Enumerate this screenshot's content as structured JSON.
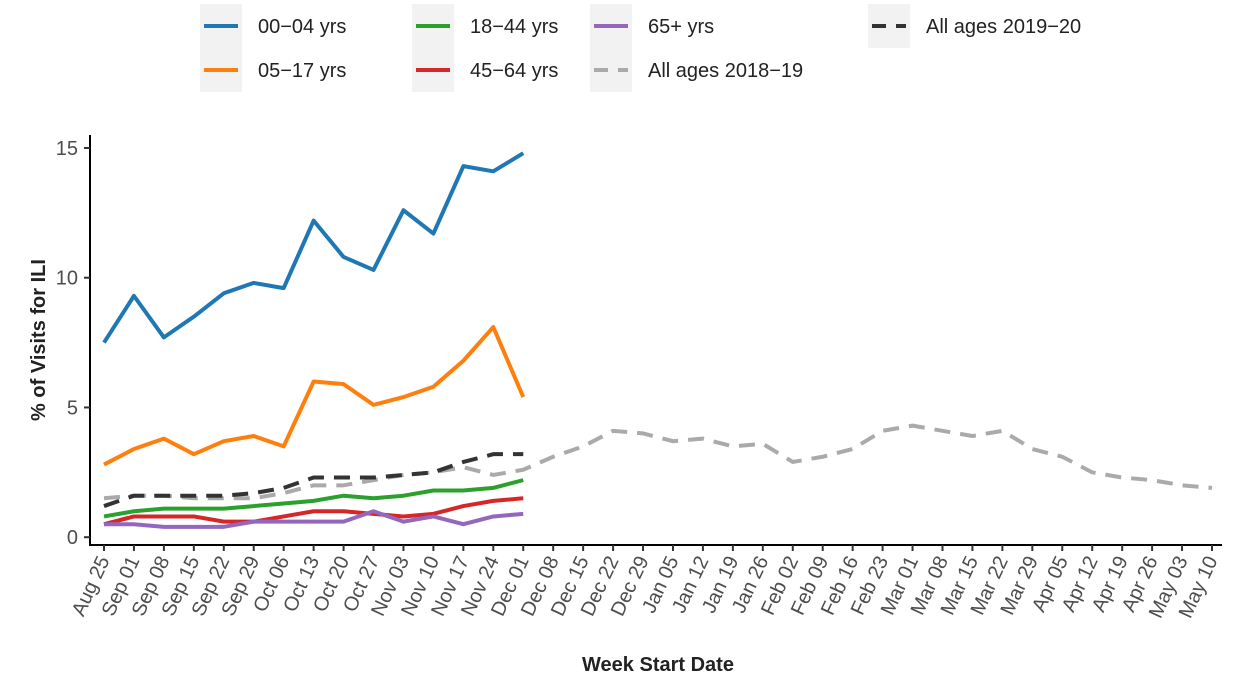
{
  "chart_data": {
    "type": "line",
    "x_label": "Week Start Date",
    "y_label": "% of Visits for ILI",
    "categories": [
      "Aug 25",
      "Sep 01",
      "Sep 08",
      "Sep 15",
      "Sep 22",
      "Sep 29",
      "Oct 06",
      "Oct 13",
      "Oct 20",
      "Oct 27",
      "Nov 03",
      "Nov 10",
      "Nov 17",
      "Nov 24",
      "Dec 01",
      "Dec 08",
      "Dec 15",
      "Dec 22",
      "Dec 29",
      "Jan 05",
      "Jan 12",
      "Jan 19",
      "Jan 26",
      "Feb 02",
      "Feb 09",
      "Feb 16",
      "Feb 23",
      "Mar 01",
      "Mar 08",
      "Mar 15",
      "Mar 22",
      "Mar 29",
      "Apr 05",
      "Apr 12",
      "Apr 19",
      "Apr 26",
      "May 03",
      "May 10"
    ],
    "ylim": [
      -0.3,
      15.5
    ],
    "yticks": [
      0,
      5,
      10,
      15
    ],
    "legend": "top",
    "series": [
      {
        "name": "00−04 yrs",
        "color": "#1f77b4",
        "linestyle": "solid",
        "values": [
          7.5,
          9.3,
          7.7,
          8.5,
          9.4,
          9.8,
          9.6,
          12.2,
          10.8,
          10.3,
          12.6,
          11.7,
          14.3,
          14.1,
          14.8,
          null,
          null,
          null,
          null,
          null,
          null,
          null,
          null,
          null,
          null,
          null,
          null,
          null,
          null,
          null,
          null,
          null,
          null,
          null,
          null,
          null,
          null,
          null
        ]
      },
      {
        "name": "05−17 yrs",
        "color": "#ff7f0e",
        "linestyle": "solid",
        "values": [
          2.8,
          3.4,
          3.8,
          3.2,
          3.7,
          3.9,
          3.5,
          6.0,
          5.9,
          5.1,
          5.4,
          5.8,
          6.8,
          8.1,
          5.4,
          null,
          null,
          null,
          null,
          null,
          null,
          null,
          null,
          null,
          null,
          null,
          null,
          null,
          null,
          null,
          null,
          null,
          null,
          null,
          null,
          null,
          null,
          null
        ]
      },
      {
        "name": "18−44 yrs",
        "color": "#2ca02c",
        "linestyle": "solid",
        "values": [
          0.8,
          1.0,
          1.1,
          1.1,
          1.1,
          1.2,
          1.3,
          1.4,
          1.6,
          1.5,
          1.6,
          1.8,
          1.8,
          1.9,
          2.2,
          null,
          null,
          null,
          null,
          null,
          null,
          null,
          null,
          null,
          null,
          null,
          null,
          null,
          null,
          null,
          null,
          null,
          null,
          null,
          null,
          null,
          null,
          null
        ]
      },
      {
        "name": "45−64 yrs",
        "color": "#d62728",
        "linestyle": "solid",
        "values": [
          0.5,
          0.8,
          0.8,
          0.8,
          0.6,
          0.6,
          0.8,
          1.0,
          1.0,
          0.9,
          0.8,
          0.9,
          1.2,
          1.4,
          1.5,
          null,
          null,
          null,
          null,
          null,
          null,
          null,
          null,
          null,
          null,
          null,
          null,
          null,
          null,
          null,
          null,
          null,
          null,
          null,
          null,
          null,
          null,
          null
        ]
      },
      {
        "name": "65+ yrs",
        "color": "#9467bd",
        "linestyle": "solid",
        "values": [
          0.5,
          0.5,
          0.4,
          0.4,
          0.4,
          0.6,
          0.6,
          0.6,
          0.6,
          1.0,
          0.6,
          0.8,
          0.5,
          0.8,
          0.9,
          null,
          null,
          null,
          null,
          null,
          null,
          null,
          null,
          null,
          null,
          null,
          null,
          null,
          null,
          null,
          null,
          null,
          null,
          null,
          null,
          null,
          null,
          null
        ]
      },
      {
        "name": "All ages 2018−19",
        "color": "#aaaaaa",
        "linestyle": "dashed",
        "values": [
          1.5,
          1.6,
          1.6,
          1.5,
          1.5,
          1.5,
          1.7,
          2.0,
          2.0,
          2.2,
          2.4,
          2.5,
          2.7,
          2.4,
          2.6,
          3.1,
          3.5,
          4.1,
          4.0,
          3.7,
          3.8,
          3.5,
          3.6,
          2.9,
          3.1,
          3.4,
          4.1,
          4.3,
          4.1,
          3.9,
          4.1,
          3.4,
          3.1,
          2.5,
          2.3,
          2.2,
          2.0,
          1.9
        ]
      },
      {
        "name": "All ages 2019−20",
        "color": "#333333",
        "linestyle": "dashed",
        "values": [
          1.2,
          1.6,
          1.6,
          1.6,
          1.6,
          1.7,
          1.9,
          2.3,
          2.3,
          2.3,
          2.4,
          2.5,
          2.9,
          3.2,
          3.2,
          null,
          null,
          null,
          null,
          null,
          null,
          null,
          null,
          null,
          null,
          null,
          null,
          null,
          null,
          null,
          null,
          null,
          null,
          null,
          null,
          null,
          null,
          null
        ]
      }
    ]
  }
}
